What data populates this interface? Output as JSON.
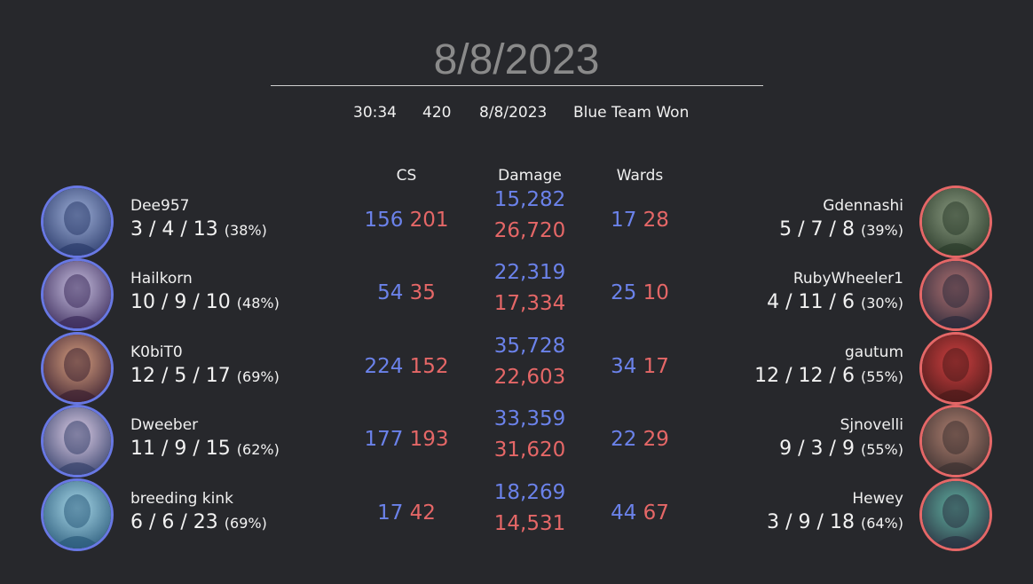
{
  "header": {
    "title": "8/8/2023",
    "duration": "30:34",
    "queue_id": "420",
    "date": "8/8/2023",
    "result": "Blue Team Won"
  },
  "columns": {
    "cs": "CS",
    "damage": "Damage",
    "wards": "Wards"
  },
  "colors": {
    "blue": "#6b82ea",
    "red": "#e56767",
    "background": "#27282c"
  },
  "rows": [
    {
      "blue": {
        "name": "Dee957",
        "kda": "3 / 4 / 13",
        "kp": "(38%)",
        "avatar_icon": "champion-portrait-icon"
      },
      "red": {
        "name": "Gdennashi",
        "kda": "5 / 7 / 8",
        "kp": "(39%)",
        "avatar_icon": "champion-portrait-icon"
      },
      "cs": {
        "blue": "156",
        "red": "201"
      },
      "damage": {
        "blue": "15,282",
        "red": "26,720"
      },
      "wards": {
        "blue": "17",
        "red": "28"
      }
    },
    {
      "blue": {
        "name": "Hailkorn",
        "kda": "10 / 9 / 10",
        "kp": "(48%)",
        "avatar_icon": "champion-portrait-icon"
      },
      "red": {
        "name": "RubyWheeler1",
        "kda": "4 / 11 / 6",
        "kp": "(30%)",
        "avatar_icon": "champion-portrait-icon"
      },
      "cs": {
        "blue": "54",
        "red": "35"
      },
      "damage": {
        "blue": "22,319",
        "red": "17,334"
      },
      "wards": {
        "blue": "25",
        "red": "10"
      }
    },
    {
      "blue": {
        "name": "K0biT0",
        "kda": "12 / 5 / 17",
        "kp": "(69%)",
        "avatar_icon": "champion-portrait-icon"
      },
      "red": {
        "name": "gautum",
        "kda": "12 / 12 / 6",
        "kp": "(55%)",
        "avatar_icon": "champion-portrait-icon"
      },
      "cs": {
        "blue": "224",
        "red": "152"
      },
      "damage": {
        "blue": "35,728",
        "red": "22,603"
      },
      "wards": {
        "blue": "34",
        "red": "17"
      }
    },
    {
      "blue": {
        "name": "Dweeber",
        "kda": "11 / 9 / 15",
        "kp": "(62%)",
        "avatar_icon": "champion-portrait-icon"
      },
      "red": {
        "name": "Sjnovelli",
        "kda": "9 / 3 / 9",
        "kp": "(55%)",
        "avatar_icon": "champion-portrait-icon"
      },
      "cs": {
        "blue": "177",
        "red": "193"
      },
      "damage": {
        "blue": "33,359",
        "red": "31,620"
      },
      "wards": {
        "blue": "22",
        "red": "29"
      }
    },
    {
      "blue": {
        "name": "breeding kink",
        "kda": "6 / 6 / 23",
        "kp": "(69%)",
        "avatar_icon": "champion-portrait-icon"
      },
      "red": {
        "name": "Hewey",
        "kda": "3 / 9 / 18",
        "kp": "(64%)",
        "avatar_icon": "champion-portrait-icon"
      },
      "cs": {
        "blue": "17",
        "red": "42"
      },
      "damage": {
        "blue": "18,269",
        "red": "14,531"
      },
      "wards": {
        "blue": "44",
        "red": "67"
      }
    }
  ]
}
